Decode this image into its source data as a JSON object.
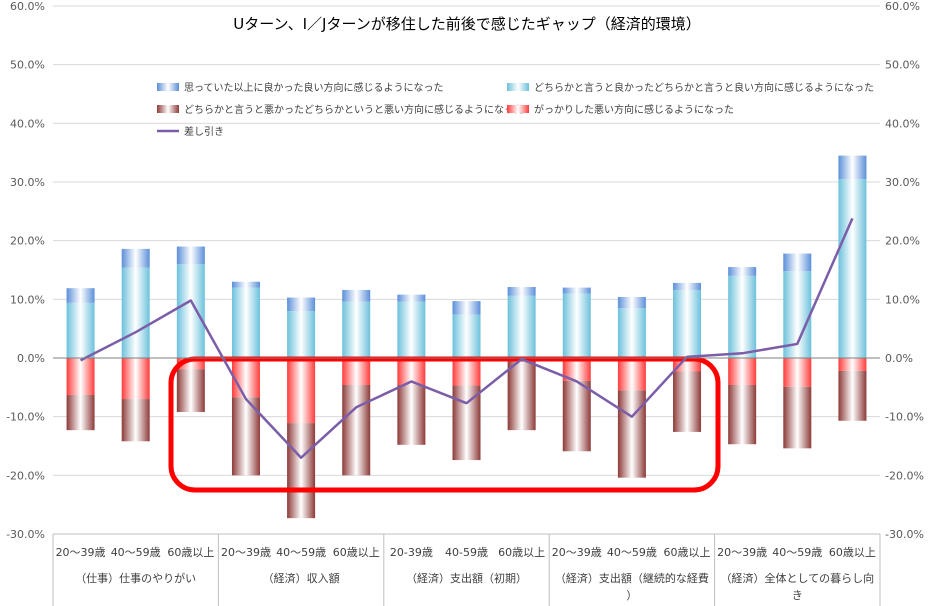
{
  "chart_data": {
    "type": "bar",
    "title": "Uターン、I／Jターンが移住した前後で感じたギャップ（経済的環境）",
    "ylim": [
      -30,
      60
    ],
    "y_ticks": [
      "60.0%",
      "50.0%",
      "40.0%",
      "30.0%",
      "20.0%",
      "10.0%",
      "0.0%",
      "-10.0%",
      "-20.0%",
      "-30.0%"
    ],
    "grid": true,
    "legend_position": "top",
    "categories": [
      "20～39歳",
      "40～59歳",
      "60歳以上",
      "20～39歳",
      "40～59歳",
      "60歳以上",
      "20-39歳",
      "40-59歳",
      "60歳以上",
      "20～39歳",
      "40～59歳",
      "60歳以上",
      "20～39歳",
      "40～59歳",
      "60歳以上"
    ],
    "groups": [
      {
        "label": "（仕事）仕事のやりがい",
        "count": 3
      },
      {
        "label": "（経済）収入額",
        "count": 3
      },
      {
        "label": "（経済）支出額（初期）",
        "count": 3
      },
      {
        "label": "（経済）支出額（継続的な経費）",
        "count": 3
      },
      {
        "label": "（経済）全体としての暮らし向き",
        "count": 3
      }
    ],
    "series": [
      {
        "name": "思っていた以上に良かった良い方向に感じるようになった",
        "type": "bar",
        "color": "#5b8fd9",
        "values": [
          2.5,
          3.2,
          3.0,
          1.0,
          2.3,
          2.0,
          1.2,
          2.3,
          1.5,
          1.0,
          1.9,
          1.2,
          1.5,
          3.0,
          4.0
        ]
      },
      {
        "name": "どちらかと言うと良かったどちらかと言うと良い方向に感じるようになった",
        "type": "bar",
        "color": "#6cc1dc",
        "values": [
          9.4,
          15.4,
          16.0,
          12.0,
          8.0,
          9.6,
          9.6,
          7.4,
          10.6,
          11.0,
          8.5,
          11.6,
          14.0,
          14.8,
          30.5
        ]
      },
      {
        "name": "どちらかと言うと悪かったどちらかというと悪い方向に感じるようになった",
        "type": "bar",
        "color": "#8c3a38",
        "values": [
          -6.0,
          -7.2,
          -7.3,
          -13.3,
          -16.2,
          -15.4,
          -10.2,
          -12.7,
          -12.0,
          -12.0,
          -14.9,
          -10.3,
          -10.1,
          -10.5,
          -8.5
        ]
      },
      {
        "name": "がっかりした悪い方向に感じるようになった",
        "type": "bar",
        "color": "#ff3b3b",
        "values": [
          -6.3,
          -7.0,
          -1.9,
          -6.7,
          -11.1,
          -4.6,
          -4.6,
          -4.7,
          -0.3,
          -3.9,
          -5.5,
          -2.3,
          -4.6,
          -4.9,
          -2.2
        ]
      },
      {
        "name": "差し引き",
        "type": "line",
        "color": "#7b5ea7",
        "values": [
          -0.4,
          4.4,
          9.8,
          -7.0,
          -17.0,
          -8.4,
          -4.0,
          -7.7,
          -0.2,
          -4.0,
          -10.0,
          0.2,
          0.8,
          2.4,
          23.8
        ]
      }
    ]
  }
}
